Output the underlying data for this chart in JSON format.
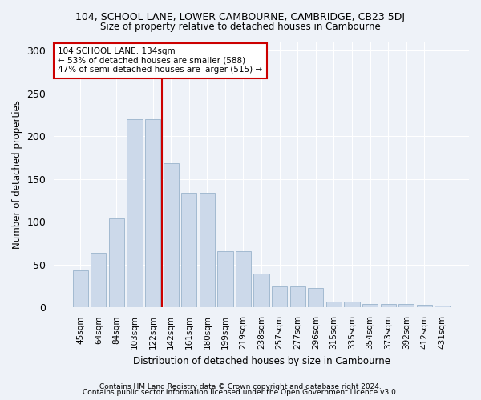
{
  "title1": "104, SCHOOL LANE, LOWER CAMBOURNE, CAMBRIDGE, CB23 5DJ",
  "title2": "Size of property relative to detached houses in Cambourne",
  "xlabel": "Distribution of detached houses by size in Cambourne",
  "ylabel": "Number of detached properties",
  "bar_labels": [
    "45sqm",
    "64sqm",
    "84sqm",
    "103sqm",
    "122sqm",
    "142sqm",
    "161sqm",
    "180sqm",
    "199sqm",
    "219sqm",
    "238sqm",
    "257sqm",
    "277sqm",
    "296sqm",
    "315sqm",
    "335sqm",
    "354sqm",
    "373sqm",
    "392sqm",
    "412sqm",
    "431sqm"
  ],
  "bar_values": [
    43,
    64,
    104,
    220,
    220,
    168,
    134,
    134,
    66,
    66,
    40,
    25,
    25,
    23,
    7,
    7,
    4,
    4,
    4,
    3,
    2
  ],
  "bar_color": "#ccd9ea",
  "bar_edge_color": "#9ab3cc",
  "vline_color": "#cc0000",
  "annotation_text": "104 SCHOOL LANE: 134sqm\n← 53% of detached houses are smaller (588)\n47% of semi-detached houses are larger (515) →",
  "annotation_box_color": "#ffffff",
  "annotation_box_edge": "#cc0000",
  "ylim": [
    0,
    310
  ],
  "yticks": [
    0,
    50,
    100,
    150,
    200,
    250,
    300
  ],
  "footer1": "Contains HM Land Registry data © Crown copyright and database right 2024.",
  "footer2": "Contains public sector information licensed under the Open Government Licence v3.0.",
  "bg_color": "#eef2f8"
}
